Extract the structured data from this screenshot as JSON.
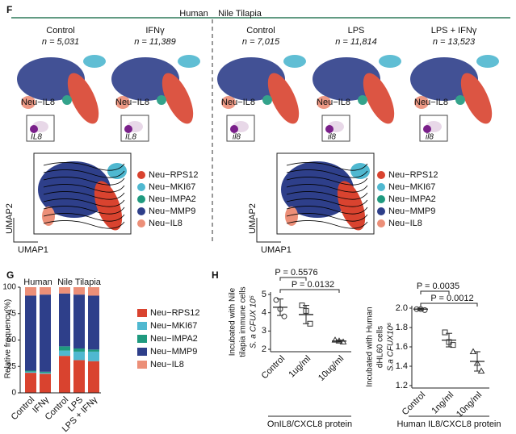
{
  "panel_f": {
    "label": "F",
    "groups": [
      "Human",
      "Nile Tilapia"
    ],
    "samples": [
      {
        "name": "Control",
        "n": "n = 5,031",
        "inset": "IL8"
      },
      {
        "name": "IFNγ",
        "n": "n = 11,389",
        "inset": "IL8"
      },
      {
        "name": "Control",
        "n": "n = 7,015",
        "inset": "il8"
      },
      {
        "name": "LPS",
        "n": "n = 11,814",
        "inset": "il8"
      },
      {
        "name": "LPS + IFNγ",
        "n": "n = 13,523",
        "inset": "il8"
      }
    ],
    "cluster_label": "Neu−IL8",
    "legend": [
      {
        "name": "Neu−RPS12",
        "color": "#d9432f"
      },
      {
        "name": "Neu−MKI67",
        "color": "#4fb8d0"
      },
      {
        "name": "Neu−IMPA2",
        "color": "#1f9a7f"
      },
      {
        "name": "Neu−MMP9",
        "color": "#2e3f8a"
      },
      {
        "name": "Neu−IL8",
        "color": "#ec8f78"
      }
    ],
    "axis_x": "UMAP1",
    "axis_y": "UMAP2"
  },
  "panel_g": {
    "label": "G",
    "groups": [
      "Human",
      "Nile Tilapia"
    ]
  },
  "panel_h": {
    "label": "H"
  },
  "chart_data": [
    {
      "type": "stacked_bar",
      "ylabel": "Relative frequency(%)",
      "categories": [
        "Control",
        "IFNγ",
        "Control",
        "LPS",
        "LPS + IFNγ"
      ],
      "ylim": [
        0,
        100
      ],
      "yticks": [
        0,
        25,
        50,
        75,
        100
      ],
      "series": [
        {
          "name": "Neu−RPS12",
          "color": "#d9432f",
          "values": [
            19,
            18,
            35,
            31,
            30
          ]
        },
        {
          "name": "Neu−MKI67",
          "color": "#4fb8d0",
          "values": [
            1,
            1,
            5,
            8,
            9
          ]
        },
        {
          "name": "Neu−IMPA2",
          "color": "#1f9a7f",
          "values": [
            1,
            1,
            4,
            3,
            2
          ]
        },
        {
          "name": "Neu−MMP9",
          "color": "#2e3f8a",
          "values": [
            71,
            73,
            50,
            51,
            51
          ]
        },
        {
          "name": "Neu−IL8",
          "color": "#ec8f78",
          "values": [
            8,
            7,
            6,
            7,
            8
          ]
        }
      ]
    },
    {
      "type": "dot",
      "ylabel": [
        "Incubated with Nile",
        "tilapia immune cells",
        "S. a CFUX 10⁵"
      ],
      "xlabel": "OnIL8/CXCL8 protein",
      "categories": [
        "Control",
        "1ug/ml",
        "10ug/ml"
      ],
      "markers": [
        "circle",
        "square",
        "triangle"
      ],
      "points": [
        [
          4.7,
          4.2,
          3.8
        ],
        [
          4.4,
          4.1,
          3.4
        ],
        [
          2.5,
          2.45,
          2.4
        ]
      ],
      "means": [
        4.3,
        3.9,
        2.45
      ],
      "errors": [
        0.45,
        0.5,
        0.05
      ],
      "annotations": [
        "P = 0.5576",
        "P = 0.0132"
      ],
      "ylim": [
        2,
        5
      ],
      "yticks": [
        2,
        3,
        4,
        5
      ]
    },
    {
      "type": "dot",
      "ylabel": [
        "Incubated with Human",
        "dHL60 cells",
        "S.a CFUX10⁶"
      ],
      "xlabel": "Human IL8/CXCL8 protein",
      "categories": [
        "Control",
        "1ng/ml",
        "10ng/ml"
      ],
      "markers": [
        "circle",
        "square",
        "triangle"
      ],
      "points": [
        [
          1.99,
          1.99,
          1.98
        ],
        [
          1.75,
          1.65,
          1.62
        ],
        [
          1.55,
          1.43,
          1.35
        ]
      ],
      "means": [
        1.99,
        1.67,
        1.45
      ],
      "errors": [
        0.01,
        0.07,
        0.1
      ],
      "annotations": [
        "P = 0.0035",
        "P = 0.0012"
      ],
      "ylim": [
        1.2,
        2.0
      ],
      "yticks": [
        1.2,
        1.4,
        1.6,
        1.8,
        {
          "value": 2,
          "label": "2.0"
        }
      ]
    }
  ]
}
